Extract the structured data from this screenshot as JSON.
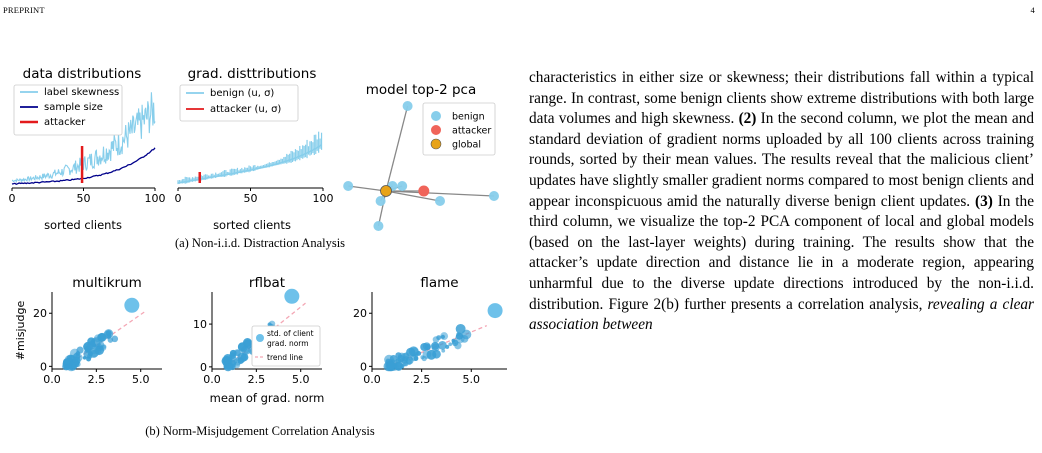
{
  "header": {
    "left": "PREPRINT",
    "right": "4"
  },
  "captions": {
    "a": "(a) Non-i.i.d. Distraction Analysis",
    "b": "(b) Norm-Misjudgement Correlation Analysis"
  },
  "body_runs": [
    {
      "t": "characteristics in either size or skewness; their distributions fall within a typical range. In contrast, some benign clients show extreme distributions with both large data volumes and high skewness. "
    },
    {
      "t": "(2)",
      "b": true
    },
    {
      "t": " In the second column, we plot the mean and standard deviation of gradient norms uploaded by all 100 clients across training rounds, sorted by their mean values. The results reveal that the malicious client’ updates have slightly smaller gradient norms compared to most benign clients and appear inconspicuous amid the naturally diverse benign client updates. "
    },
    {
      "t": "(3)",
      "b": true
    },
    {
      "t": " In the third column, we visualize the top-2 PCA component of local and global models (based on the last-layer weights) during training. The results show that the attacker’s update direction and distance lie in a moderate region, appearing unharmful due to the diverse update directions introduced by the non-i.i.d. distribution. Figure 2(b) further presents a correlation analysis, "
    },
    {
      "t": "revealing a clear association between",
      "i": true
    }
  ],
  "chart_data": [
    {
      "type": "line",
      "title": "data distributions",
      "xlabel": "sorted clients",
      "xlim": [
        0,
        100
      ],
      "xticks": [
        "0",
        "50",
        "100"
      ],
      "legend_placement": "upper-left",
      "series": [
        {
          "name": "label skewness",
          "color": "#87ceeb",
          "kind": "spiky-rising"
        },
        {
          "name": "sample size",
          "color": "#00008b",
          "kind": "smooth-rising"
        },
        {
          "name": "attacker",
          "color": "#e31a1c",
          "kind": "vertical-marker",
          "x": 49
        }
      ]
    },
    {
      "type": "line",
      "title": "grad. disttributions",
      "xlabel": "sorted clients",
      "xlim": [
        0,
        100
      ],
      "xticks": [
        "0",
        "50",
        "100"
      ],
      "legend_placement": "upper-left",
      "series": [
        {
          "name": "benign (u, σ)",
          "color": "#87ceeb",
          "kind": "mean-with-std"
        },
        {
          "name": "attacker (u, σ)",
          "color": "#e31a1c",
          "kind": "vertical-marker",
          "x": 15
        }
      ]
    },
    {
      "type": "scatter",
      "title": "model top-2 pca",
      "legend_placement": "upper-right",
      "global": [
        0.0,
        0.0
      ],
      "attacker": [
        0.35,
        0.0
      ],
      "benign": [
        [
          -0.35,
          0.05
        ],
        [
          0.15,
          0.05
        ],
        [
          -0.05,
          -0.1
        ],
        [
          0.5,
          -0.1
        ],
        [
          0.2,
          0.85
        ],
        [
          -0.07,
          -0.35
        ],
        [
          1.0,
          -0.05
        ],
        [
          0.06,
          0.05
        ]
      ],
      "series": [
        {
          "name": "benign",
          "color": "#87ceeb"
        },
        {
          "name": "attacker",
          "color": "#f0645a"
        },
        {
          "name": "global",
          "color": "#e8a317"
        }
      ]
    },
    {
      "type": "scatter",
      "title": "multikrum",
      "ylabel": "#misjudge",
      "xlim": [
        0,
        6.2
      ],
      "ylim": [
        -1,
        28
      ],
      "xticks": [
        "0.0",
        "2.5",
        "5.0"
      ],
      "yticks": [
        "0",
        "20"
      ],
      "highlight": {
        "x": 4.5,
        "y": 23
      }
    },
    {
      "type": "scatter",
      "title": "rflbat",
      "xlabel": "mean of grad. norm",
      "xlim": [
        0,
        6.2
      ],
      "ylim": [
        -0.5,
        17.5
      ],
      "xticks": [
        "0.0",
        "2.5",
        "5.0"
      ],
      "yticks": [
        "0",
        "10"
      ],
      "highlight": {
        "x": 4.5,
        "y": 16.5
      },
      "legend_placement": "lower-right",
      "legend": [
        "std. of client",
        "grad. norm",
        "trend line"
      ]
    },
    {
      "type": "scatter",
      "title": "flame",
      "xlim": [
        0,
        6.8
      ],
      "ylim": [
        -1,
        28
      ],
      "xticks": [
        "0.0",
        "2.5",
        "5.0"
      ],
      "yticks": [
        "0",
        "20"
      ],
      "highlight": {
        "x": 6.2,
        "y": 21
      }
    }
  ]
}
